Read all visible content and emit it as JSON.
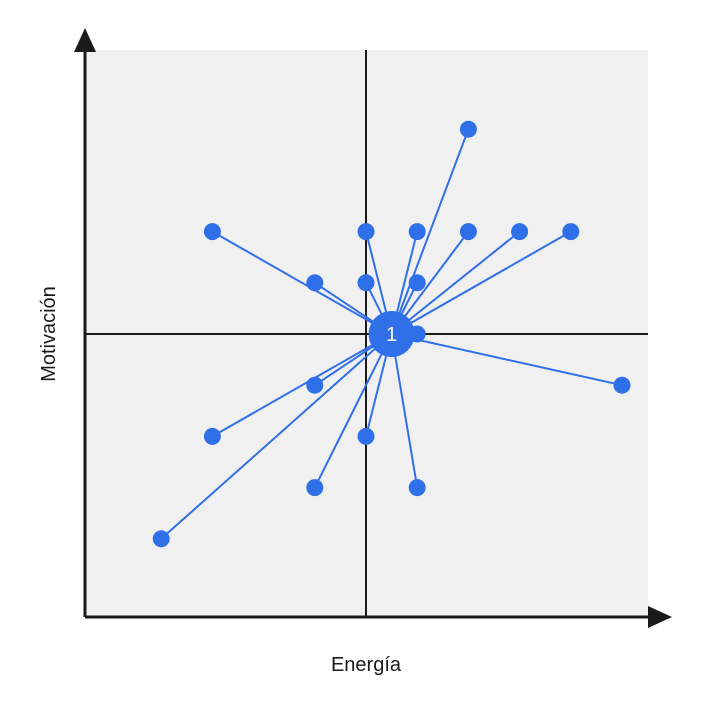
{
  "chart_data": {
    "type": "scatter",
    "title": "",
    "xlabel": "Energía",
    "ylabel": "Motivación",
    "xlim": [
      -5.5,
      5.5
    ],
    "ylim": [
      -5.5,
      5.5
    ],
    "grid": false,
    "quadrant_lines": true,
    "background_color": "#f0f0f0",
    "point_color": "#2f6fe8",
    "line_color": "#2f6fe8",
    "axis_color": "#1a1a1a",
    "center": {
      "x": 0.5,
      "y": 0,
      "label": "1"
    },
    "points": [
      {
        "x": 2,
        "y": 4
      },
      {
        "x": -3,
        "y": 2
      },
      {
        "x": 0,
        "y": 2
      },
      {
        "x": 1,
        "y": 2
      },
      {
        "x": 2,
        "y": 2
      },
      {
        "x": 3,
        "y": 2
      },
      {
        "x": 4,
        "y": 2
      },
      {
        "x": -1,
        "y": 1
      },
      {
        "x": 0,
        "y": 1
      },
      {
        "x": 1,
        "y": 1
      },
      {
        "x": 1,
        "y": 0
      },
      {
        "x": 5,
        "y": -1
      },
      {
        "x": -1,
        "y": -1
      },
      {
        "x": -3,
        "y": -2
      },
      {
        "x": 0,
        "y": -2
      },
      {
        "x": -1,
        "y": -3
      },
      {
        "x": 1,
        "y": -3
      },
      {
        "x": -4,
        "y": -4
      }
    ]
  }
}
